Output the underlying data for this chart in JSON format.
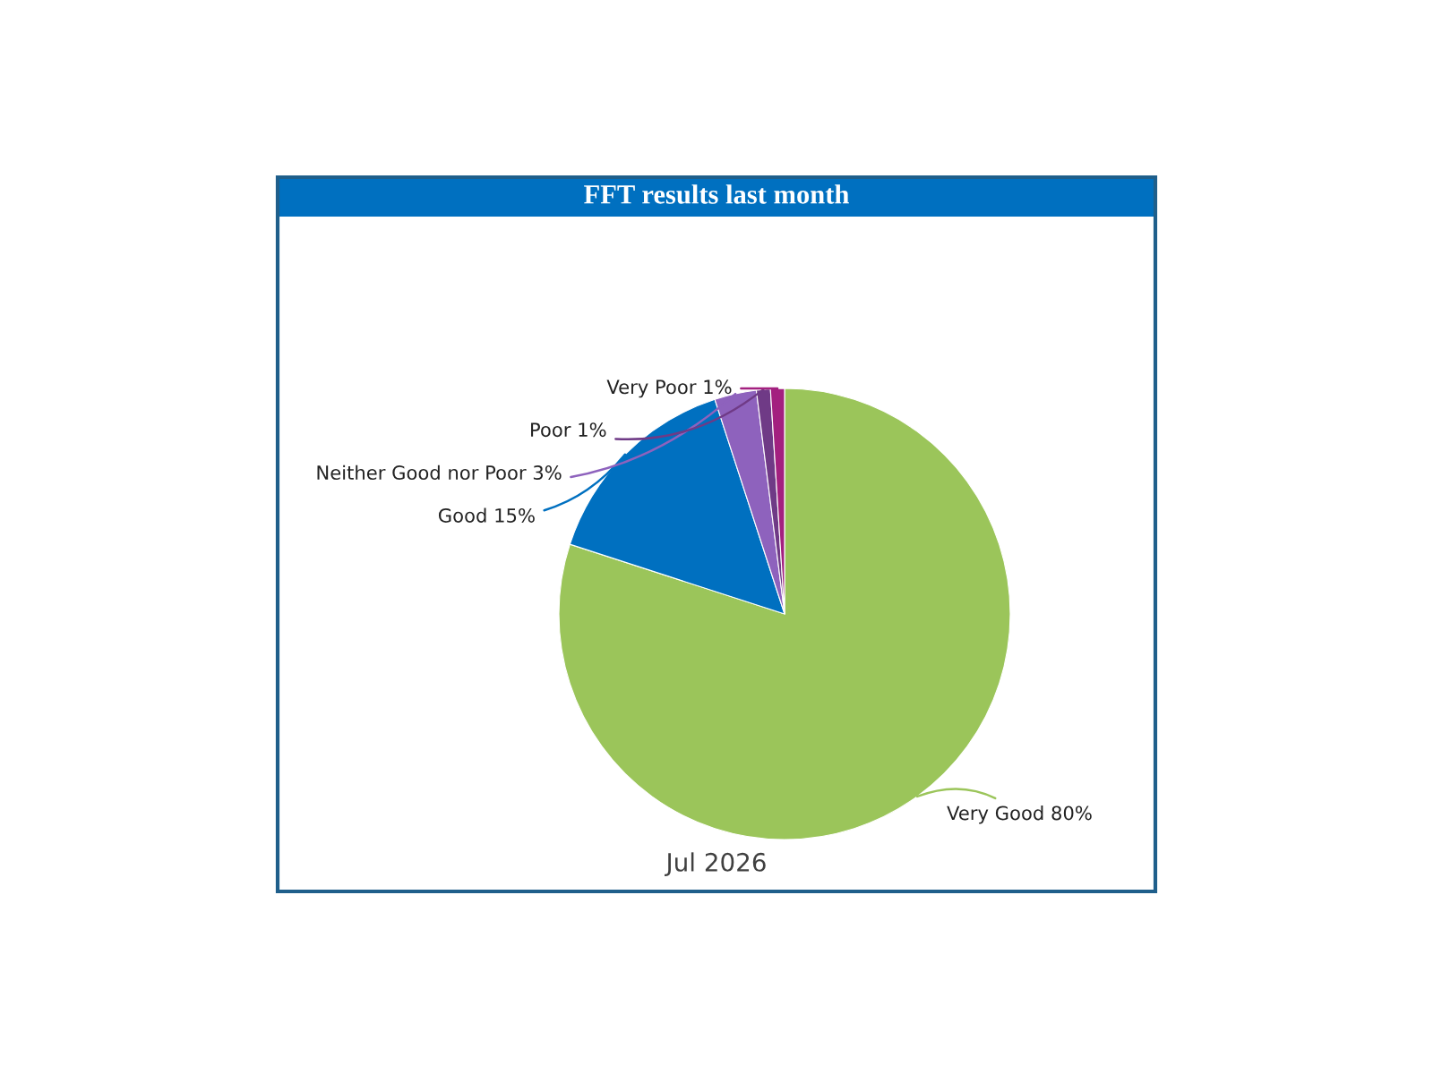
{
  "chart_data": {
    "type": "pie",
    "title": "FFT results last month",
    "xlabel": "Jul 2026",
    "categories": [
      "Very Good",
      "Good",
      "Neither Good nor Poor",
      "Poor",
      "Very Poor"
    ],
    "values": [
      80,
      15,
      3,
      1,
      1
    ],
    "value_labels": [
      "80%",
      "15%",
      "3%",
      "1%",
      "1%"
    ],
    "colors": [
      "#9bc55a",
      "#0070c0",
      "#8e62bd",
      "#6f3a86",
      "#a3207f"
    ]
  }
}
